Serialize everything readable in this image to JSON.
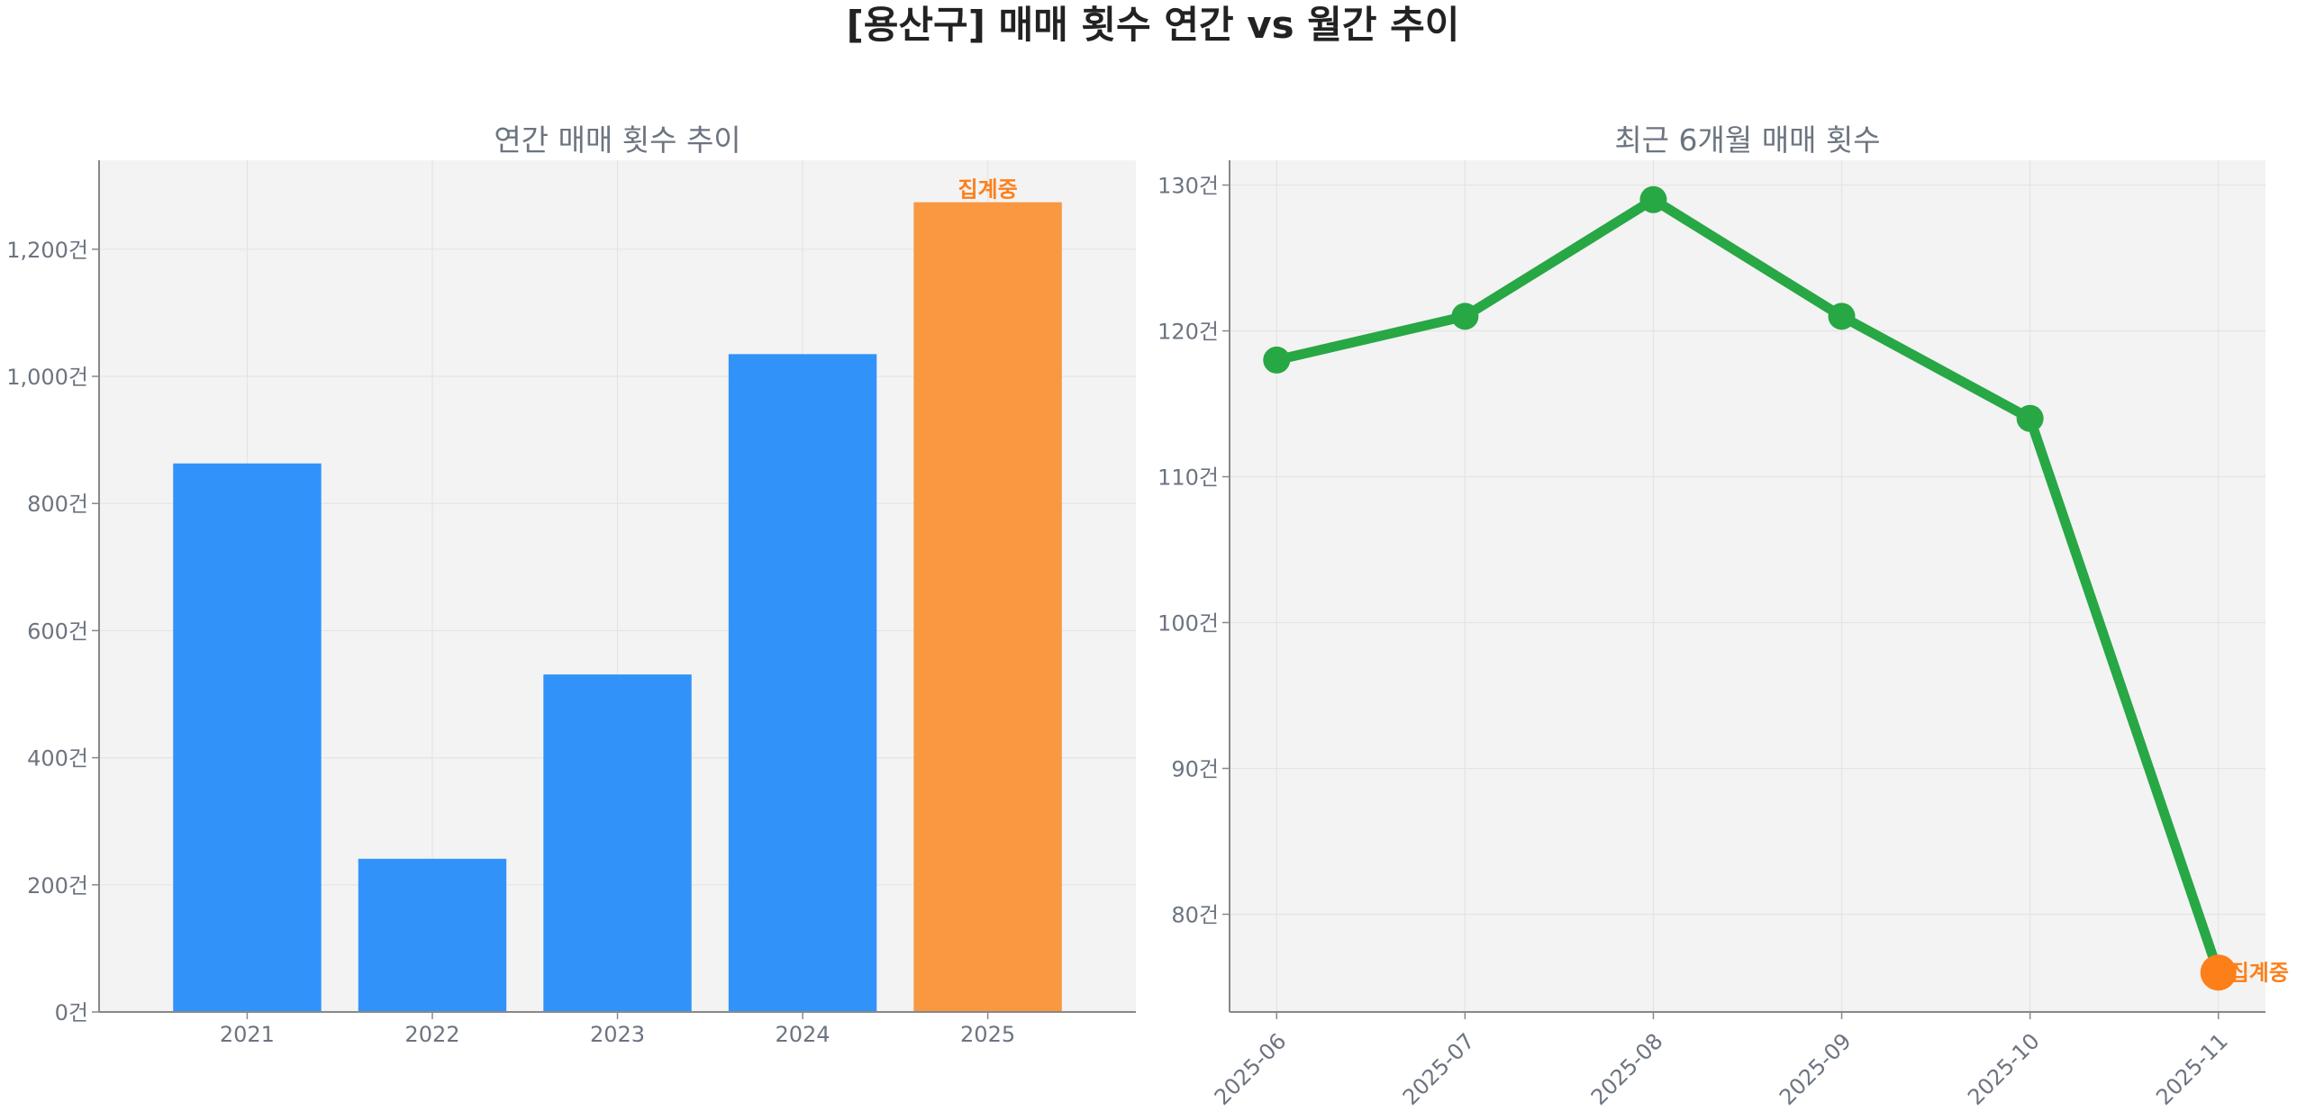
{
  "figure": {
    "title": "[용산구] 매매 횟수 연간 vs 월간 추이"
  },
  "colors": {
    "bar_normal": "#3193fa",
    "bar_highlight": "#f99840",
    "line": "#28a745",
    "last_point": "#fd7f1a",
    "annotation": "#fd7f1a",
    "axes_bg": "#f3f3f3",
    "grid": "#e4e4e4",
    "spine": "#888888",
    "text_muted": "#6c7480"
  },
  "chart_data": [
    {
      "type": "bar",
      "title": "연간 매매 횟수 추이",
      "categories": [
        "2021",
        "2022",
        "2023",
        "2024",
        "2025"
      ],
      "values": [
        863,
        241,
        531,
        1035,
        1274
      ],
      "highlight_index": 4,
      "highlight_label": "집계중",
      "ylim": [
        0,
        1340
      ],
      "yticks": [
        0,
        200,
        400,
        600,
        800,
        1000,
        1200
      ],
      "ytick_labels": [
        "0건",
        "200건",
        "400건",
        "600건",
        "800건",
        "1,000건",
        "1,200건"
      ],
      "xlabel": "",
      "ylabel": "",
      "grid": true,
      "legend": false
    },
    {
      "type": "line",
      "title": "최근 6개월 매매 횟수",
      "categories": [
        "2025-06",
        "2025-07",
        "2025-08",
        "2025-09",
        "2025-10",
        "2025-11"
      ],
      "values": [
        118,
        121,
        129,
        121,
        114,
        76
      ],
      "highlight_index": 5,
      "highlight_label": "집계중",
      "ylim": [
        73.3,
        131.7
      ],
      "yticks": [
        80,
        90,
        100,
        110,
        120,
        130
      ],
      "ytick_labels": [
        "80건",
        "90건",
        "100건",
        "110건",
        "120건",
        "130건"
      ],
      "xtick_rotation": 45,
      "xlabel": "",
      "ylabel": "",
      "grid": true,
      "legend": false
    }
  ]
}
